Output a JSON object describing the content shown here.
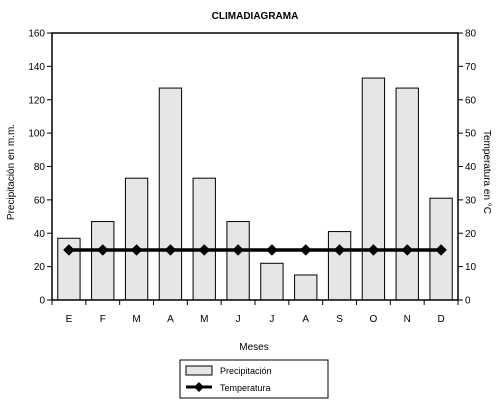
{
  "chart_data": {
    "type": "bar",
    "title": "CLIMADIAGRAMA",
    "xlabel": "Meses",
    "ylabel_left": "Precipitación en m.m.",
    "ylabel_right": "Temperatura en °C",
    "categories": [
      "E",
      "F",
      "M",
      "A",
      "M",
      "J",
      "J",
      "A",
      "S",
      "O",
      "N",
      "D"
    ],
    "ylim_left": [
      0,
      160
    ],
    "ylim_right": [
      0,
      80
    ],
    "yticks_left": [
      0,
      20,
      40,
      60,
      80,
      100,
      120,
      140,
      160
    ],
    "yticks_right": [
      0,
      10,
      20,
      30,
      40,
      50,
      60,
      70,
      80
    ],
    "series": [
      {
        "name": "Precipitación",
        "type": "bar",
        "axis": "left",
        "color": "#e6e6e6",
        "values": [
          37,
          47,
          73,
          127,
          73,
          47,
          22,
          15,
          41,
          133,
          127,
          61
        ]
      },
      {
        "name": "Temperatura",
        "type": "line",
        "axis": "right",
        "color": "#000000",
        "values": [
          15,
          15,
          15,
          15,
          15,
          15,
          15,
          15,
          15,
          15,
          15,
          15
        ]
      }
    ],
    "legend": {
      "placement": "bottom-center"
    }
  }
}
